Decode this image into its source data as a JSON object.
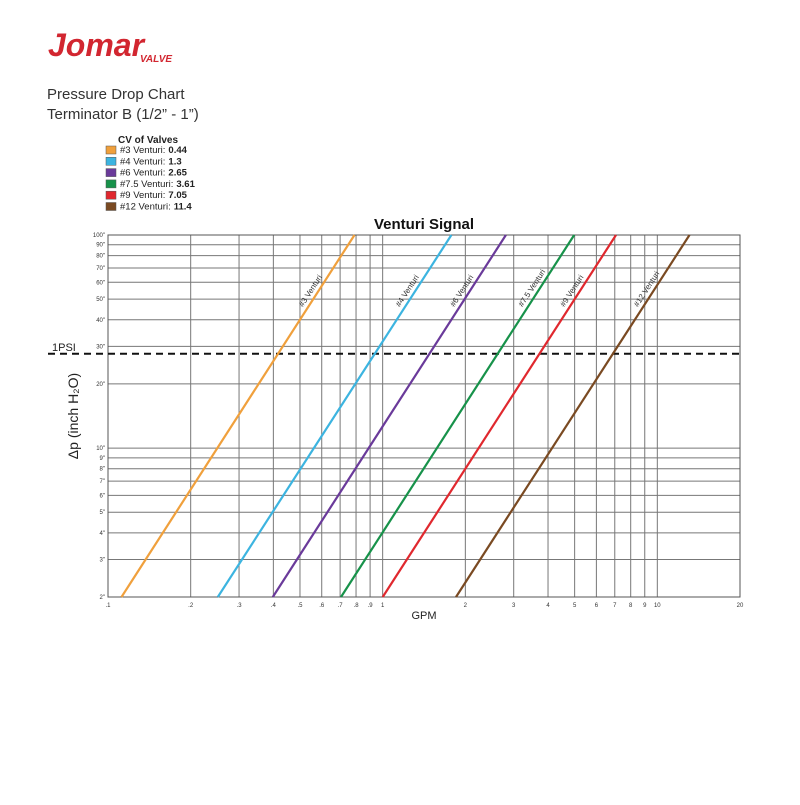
{
  "header": {
    "logo": "Jomar",
    "logo_sub": "VALVE",
    "title": "Pressure Drop Chart",
    "subtitle": "Terminator B (1/2” - 1”)"
  },
  "chart_data": {
    "type": "line",
    "title": "Venturi Signal",
    "legend_title": "CV of Valves",
    "x_label": "GPM",
    "y_label": "Δp (inch H₂O)",
    "log_x": true,
    "log_y": true,
    "grid": true,
    "xlim": [
      0.1,
      20
    ],
    "ylim": [
      2,
      100
    ],
    "xticks": [
      {
        "value": 0.1,
        "label": ".1"
      },
      {
        "value": 0.2,
        "label": ".2"
      },
      {
        "value": 0.3,
        "label": ".3"
      },
      {
        "value": 0.4,
        "label": ".4"
      },
      {
        "value": 0.5,
        "label": ".5"
      },
      {
        "value": 0.6,
        "label": ".6"
      },
      {
        "value": 0.7,
        "label": ".7"
      },
      {
        "value": 0.8,
        "label": ".8"
      },
      {
        "value": 0.9,
        "label": ".9"
      },
      1,
      2,
      3,
      4,
      5,
      6,
      7,
      8,
      9,
      10,
      20
    ],
    "yticks": [
      {
        "value": 2,
        "label": "2\""
      },
      {
        "value": 3,
        "label": "3\""
      },
      {
        "value": 4,
        "label": "4\""
      },
      {
        "value": 5,
        "label": "5\""
      },
      {
        "value": 6,
        "label": "6\""
      },
      {
        "value": 7,
        "label": "7\""
      },
      {
        "value": 8,
        "label": "8\""
      },
      {
        "value": 9,
        "label": "9\""
      },
      {
        "value": 10,
        "label": "10\""
      },
      {
        "value": 20,
        "label": "20\""
      },
      {
        "value": 30,
        "label": "30\""
      },
      {
        "value": 40,
        "label": "40\""
      },
      {
        "value": 50,
        "label": "50\""
      },
      {
        "value": 60,
        "label": "60\""
      },
      {
        "value": 70,
        "label": "70\""
      },
      {
        "value": 80,
        "label": "80\""
      },
      {
        "value": 90,
        "label": "90\""
      },
      {
        "value": 100,
        "label": "100\""
      }
    ],
    "reference_line": {
      "label": "1PSI",
      "value": 27.7
    },
    "series": [
      {
        "name": "#3 Venturi",
        "legend_label": "#3 Venturi:",
        "cv": 0.44,
        "color": "#f0a03c",
        "x": [
          0.112,
          0.79
        ],
        "values": [
          2,
          100
        ]
      },
      {
        "name": "#4 Venturi",
        "legend_label": "#4 Venturi:",
        "cv": 1.3,
        "color": "#3cb4e0",
        "x": [
          0.251,
          1.78
        ],
        "values": [
          2,
          100
        ]
      },
      {
        "name": "#6 Venturi",
        "legend_label": "#6 Venturi:",
        "cv": 2.65,
        "color": "#6a3a9a",
        "x": [
          0.398,
          2.81
        ],
        "values": [
          2,
          100
        ]
      },
      {
        "name": "#7.5 Venturi",
        "legend_label": "#7.5 Venturi:",
        "cv": 3.61,
        "color": "#17924a",
        "x": [
          0.705,
          4.98
        ],
        "values": [
          2,
          100
        ]
      },
      {
        "name": "#9 Venturi",
        "legend_label": "#9 Venturi:",
        "cv": 7.05,
        "color": "#e0282e",
        "x": [
          1.0,
          7.07
        ],
        "values": [
          2,
          100
        ]
      },
      {
        "name": "#12 Venturi",
        "legend_label": "#12 Venturi:",
        "cv": 11.4,
        "color": "#7a4a22",
        "x": [
          1.85,
          13.1
        ],
        "values": [
          2,
          100
        ]
      }
    ]
  }
}
